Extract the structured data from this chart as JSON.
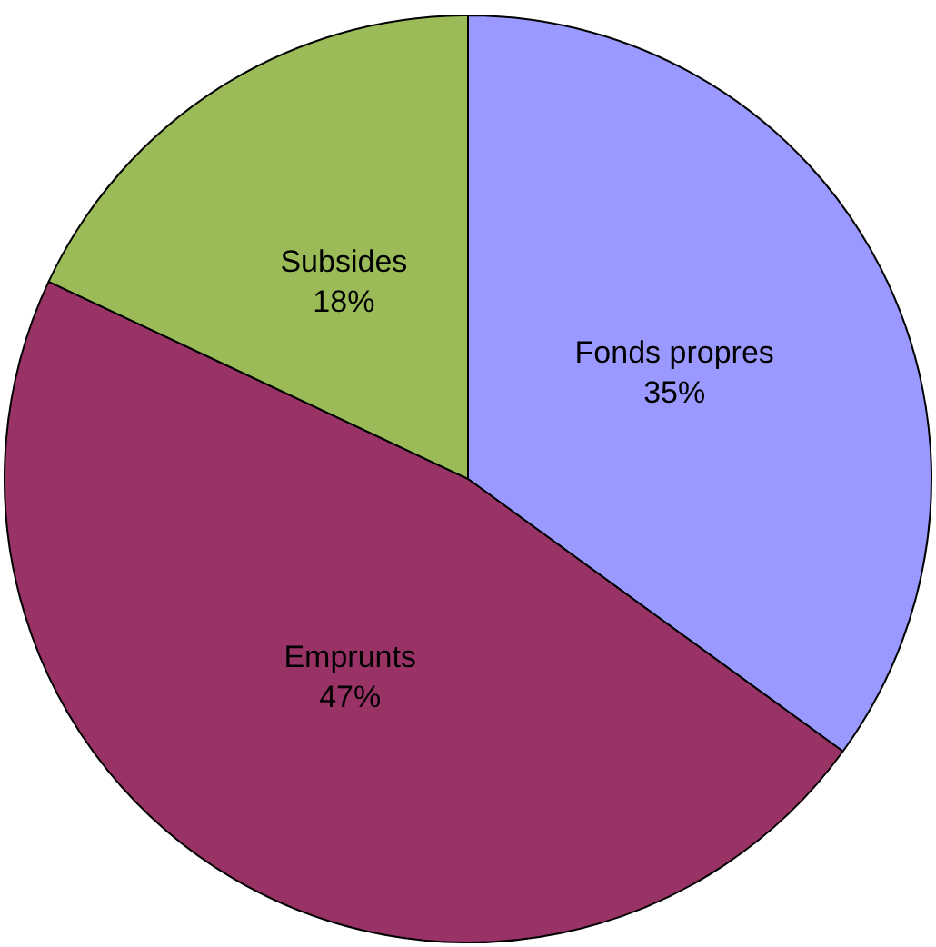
{
  "chart_data": {
    "type": "pie",
    "categories": [
      "Fonds propres",
      "Emprunts",
      "Subsides"
    ],
    "values": [
      35,
      47,
      18
    ],
    "colors": [
      "#9999ff",
      "#993366",
      "#9bbb59"
    ],
    "value_labels": [
      "35%",
      "47%",
      "18%"
    ],
    "legend": false
  }
}
